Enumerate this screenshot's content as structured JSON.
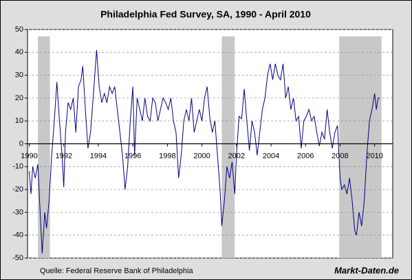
{
  "chart_data": {
    "type": "line",
    "title": "Philadelphia Fed Survey, SA, 1990 - April 2010",
    "source": "Quelle: Federal Reserve Bank of Philadelphia",
    "brand": "Markt-Daten.de",
    "color": "#000080",
    "grid": true,
    "xlim": [
      1989.9,
      2011.05
    ],
    "xticks": [
      1990,
      1992,
      1994,
      1996,
      1998,
      2000,
      2002,
      2004,
      2006,
      2008,
      2010
    ],
    "ylim": [
      -50,
      50
    ],
    "yticks": [
      -50,
      -40,
      -30,
      -20,
      -10,
      0,
      10,
      20,
      30,
      40,
      50
    ],
    "shaded_periods": [
      [
        1990.5,
        1991.2
      ],
      [
        2001.15,
        2001.9
      ],
      [
        2007.95,
        2010.4
      ]
    ],
    "x": [
      1990.0,
      1990.1,
      1990.2,
      1990.35,
      1990.5,
      1990.6,
      1990.75,
      1990.9,
      1991.0,
      1991.15,
      1991.3,
      1991.45,
      1991.6,
      1991.75,
      1991.9,
      1992.0,
      1992.1,
      1992.25,
      1992.4,
      1992.55,
      1992.7,
      1992.85,
      1993.0,
      1993.1,
      1993.25,
      1993.4,
      1993.55,
      1993.7,
      1993.9,
      1994.05,
      1994.2,
      1994.35,
      1994.5,
      1994.65,
      1994.8,
      1994.95,
      1995.1,
      1995.25,
      1995.4,
      1995.55,
      1995.7,
      1995.85,
      1996.0,
      1996.1,
      1996.25,
      1996.4,
      1996.55,
      1996.7,
      1996.85,
      1997.0,
      1997.15,
      1997.3,
      1997.45,
      1997.6,
      1997.75,
      1997.9,
      1998.05,
      1998.2,
      1998.35,
      1998.5,
      1998.65,
      1998.8,
      1998.95,
      1999.1,
      1999.25,
      1999.4,
      1999.55,
      1999.7,
      1999.85,
      2000.0,
      2000.15,
      2000.3,
      2000.45,
      2000.6,
      2000.75,
      2000.9,
      2001.05,
      2001.15,
      2001.3,
      2001.45,
      2001.6,
      2001.75,
      2001.9,
      2002.0,
      2002.15,
      2002.3,
      2002.45,
      2002.6,
      2002.75,
      2002.9,
      2003.05,
      2003.2,
      2003.35,
      2003.5,
      2003.65,
      2003.8,
      2003.95,
      2004.1,
      2004.25,
      2004.4,
      2004.55,
      2004.7,
      2004.85,
      2005.0,
      2005.15,
      2005.3,
      2005.45,
      2005.6,
      2005.75,
      2005.9,
      2006.05,
      2006.2,
      2006.35,
      2006.5,
      2006.65,
      2006.8,
      2006.95,
      2007.1,
      2007.25,
      2007.4,
      2007.55,
      2007.7,
      2007.85,
      2008.0,
      2008.1,
      2008.25,
      2008.4,
      2008.55,
      2008.7,
      2008.85,
      2008.95,
      2009.1,
      2009.25,
      2009.4,
      2009.55,
      2009.7,
      2009.85,
      2010.0,
      2010.1,
      2010.2,
      2010.3
    ],
    "values": [
      -12,
      -22,
      -10,
      -15,
      -9,
      -25,
      -48,
      -30,
      -37,
      -25,
      -5,
      10,
      27,
      10,
      -5,
      -19,
      5,
      18,
      15,
      20,
      5,
      25,
      28,
      34,
      15,
      -2,
      5,
      20,
      41,
      25,
      18,
      22,
      18,
      25,
      22,
      25,
      15,
      5,
      -5,
      -20,
      -10,
      10,
      25,
      -5,
      20,
      15,
      10,
      20,
      12,
      10,
      20,
      18,
      10,
      15,
      20,
      18,
      15,
      20,
      10,
      5,
      -15,
      -5,
      10,
      15,
      10,
      20,
      5,
      10,
      15,
      10,
      20,
      25,
      12,
      5,
      10,
      -5,
      -20,
      -36,
      -25,
      -10,
      -15,
      -8,
      -22,
      -5,
      12,
      11,
      24,
      10,
      -3,
      10,
      5,
      -5,
      5,
      15,
      20,
      30,
      35,
      28,
      35,
      30,
      28,
      35,
      20,
      25,
      15,
      20,
      10,
      12,
      -2,
      10,
      12,
      15,
      10,
      12,
      5,
      -1,
      5,
      2,
      15,
      5,
      -2,
      5,
      8,
      -15,
      -20,
      -18,
      -22,
      -15,
      -25,
      -38,
      -40,
      -30,
      -36,
      -25,
      -5,
      10,
      15,
      22,
      15,
      20,
      20
    ]
  }
}
